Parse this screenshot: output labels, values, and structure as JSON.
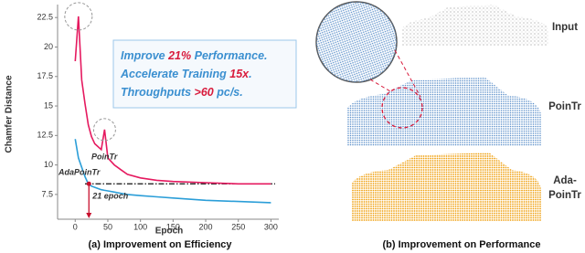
{
  "chart_data": {
    "type": "line",
    "x_label": "Epoch",
    "y_label": "Chamfer Distance",
    "caption": "(a) Improvement on Efficiency",
    "x": [
      0,
      5,
      10,
      15,
      20,
      25,
      30,
      40,
      45,
      50,
      60,
      70,
      80,
      100,
      125,
      150,
      200,
      250,
      300
    ],
    "series": [
      {
        "name": "PoinTr",
        "color": "#e5195f",
        "values": [
          18.8,
          22.6,
          17.2,
          15.2,
          13.4,
          12.4,
          11.8,
          11.3,
          13.0,
          10.6,
          10.0,
          9.6,
          9.2,
          8.9,
          8.7,
          8.6,
          8.5,
          8.4,
          8.4
        ]
      },
      {
        "name": "AdaPoinTr",
        "color": "#2b9ed8",
        "values": [
          12.2,
          10.6,
          9.8,
          9.0,
          8.4,
          8.2,
          8.1,
          7.9,
          7.85,
          7.8,
          7.7,
          7.6,
          7.5,
          7.4,
          7.3,
          7.2,
          7.0,
          6.9,
          6.8
        ]
      }
    ],
    "xlim": [
      -27,
      312
    ],
    "ylim": [
      5.4,
      23.6
    ],
    "xticks": [
      0,
      50,
      100,
      150,
      200,
      250,
      300
    ],
    "yticks": [
      7.5,
      10,
      12.5,
      15,
      17.5,
      20,
      22.5
    ],
    "reference_line": {
      "value": 8.4,
      "color": "#111"
    },
    "annotations": [
      {
        "text": "21 epoch",
        "x": 21,
        "color": "#c8102e"
      }
    ],
    "callout": [
      [
        {
          "text": "Improve "
        },
        {
          "text": "21%",
          "highlight": true
        },
        {
          "text": " Performance."
        }
      ],
      [
        {
          "text": "Accelerate Training "
        },
        {
          "text": "15x",
          "highlight": true
        },
        {
          "text": "."
        }
      ],
      [
        {
          "text": "Throughputs "
        },
        {
          "text": ">60",
          "highlight": true
        },
        {
          "text": " pc/s."
        }
      ]
    ],
    "highlight_color": "#d81b3c"
  },
  "panel_b": {
    "caption": "(b) Improvement on Performance",
    "rows": [
      {
        "label": [
          "Input"
        ]
      },
      {
        "label": [
          "PoinTr"
        ]
      },
      {
        "label": [
          "Ada-",
          "PoinTr"
        ]
      }
    ]
  }
}
